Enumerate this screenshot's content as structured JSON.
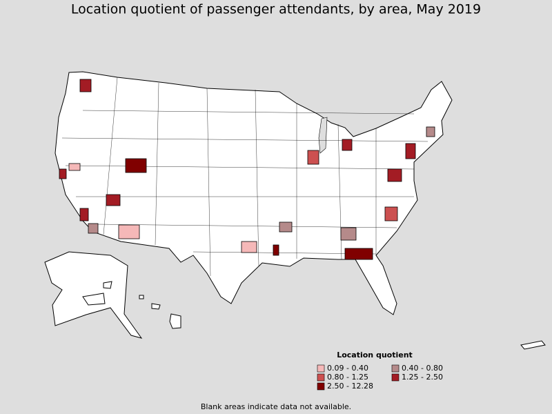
{
  "title": "Location quotient of passenger attendants, by area, May 2019",
  "legend": {
    "title": "Location quotient",
    "items": [
      {
        "label": "0.09 - 0.40",
        "color": "#f5b8b8"
      },
      {
        "label": "0.40 - 0.80",
        "color": "#b58a8a"
      },
      {
        "label": "0.80 - 1.25",
        "color": "#cc5050"
      },
      {
        "label": "1.25 - 2.50",
        "color": "#a31c24"
      },
      {
        "label": "2.50 - 12.28",
        "color": "#800000"
      }
    ]
  },
  "note": "Blank areas indicate data not available."
}
